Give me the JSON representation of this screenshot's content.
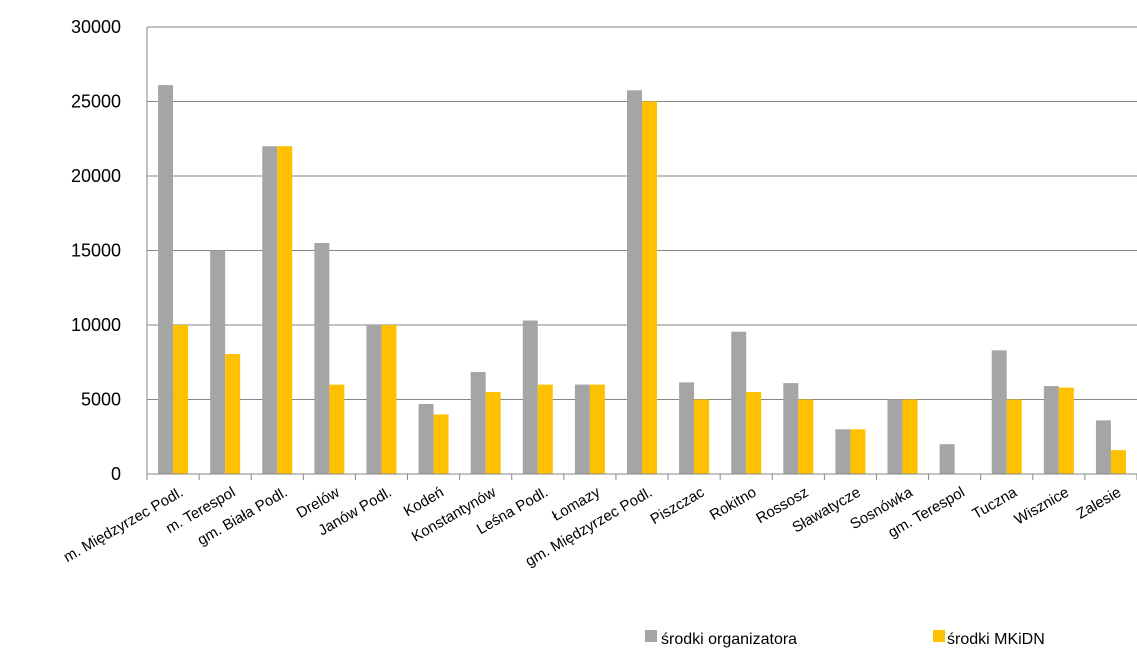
{
  "chart_data": {
    "type": "bar",
    "title": "",
    "xlabel": "",
    "ylabel": "",
    "ylim": [
      0,
      30000
    ],
    "yticks": [
      "0",
      "5000",
      "10000",
      "15000",
      "20000",
      "25000",
      "30000"
    ],
    "grid": "horizontal",
    "legend_position": "bottom-right",
    "categories": [
      "m. Międzyrzec Podl.",
      "m. Terespol",
      "gm. Biała Podl.",
      "Drelów",
      "Janów Podl.",
      "Kodeń",
      "Konstantynów",
      "Leśna Podl.",
      "Łomazy",
      "gm. Międzyrzec Podl.",
      "Piszczac",
      "Rokitno",
      "Rossosz",
      "Sławatycze",
      "Sosnówka",
      "gm. Terespol",
      "Tuczna",
      "Wisznice",
      "Zalesie"
    ],
    "series": [
      {
        "name": "środki organizatora",
        "color": "#a5a5a5",
        "values": [
          26100,
          15000,
          22000,
          15500,
          10000,
          4700,
          6850,
          10300,
          6000,
          25750,
          6150,
          9550,
          6100,
          3000,
          5000,
          2000,
          8300,
          5900,
          3600
        ]
      },
      {
        "name": "środki MKiDN",
        "color": "#ffc000",
        "values": [
          10000,
          8050,
          22000,
          6000,
          10000,
          4000,
          5500,
          6000,
          6000,
          25000,
          5000,
          5500,
          5000,
          3000,
          5000,
          0,
          5000,
          5800,
          1600
        ]
      }
    ]
  }
}
